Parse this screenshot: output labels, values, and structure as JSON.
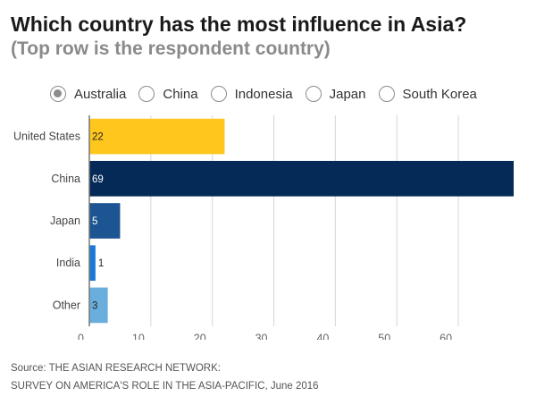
{
  "header": {
    "title": "Which country has the most influence in Asia?",
    "subtitle": "(Top row is the respondent country)"
  },
  "radio_options": [
    {
      "label": "Australia",
      "selected": true
    },
    {
      "label": "China",
      "selected": false
    },
    {
      "label": "Indonesia",
      "selected": false
    },
    {
      "label": "Japan",
      "selected": false
    },
    {
      "label": "South Korea",
      "selected": false
    }
  ],
  "chart_data": {
    "type": "bar",
    "orientation": "horizontal",
    "categories": [
      "United States",
      "China",
      "Japan",
      "India",
      "Other"
    ],
    "values": [
      22,
      69,
      5,
      1,
      3
    ],
    "data_labels": [
      "22",
      "69",
      "5",
      "1",
      "3"
    ],
    "colors": [
      "#ffc61e",
      "#062a57",
      "#1c5591",
      "#1c79d8",
      "#6aaedd"
    ],
    "xlim": [
      0,
      69
    ],
    "xticks": [
      0,
      10,
      20,
      30,
      40,
      50,
      60
    ],
    "xtick_labels": [
      "0",
      "10",
      "20",
      "30",
      "40",
      "50",
      "60"
    ],
    "grid": true
  },
  "source": {
    "line1": "Source: THE ASIAN RESEARCH NETWORK:",
    "line2": "SURVEY ON AMERICA'S ROLE IN THE ASIA-PACIFIC, June 2016"
  }
}
